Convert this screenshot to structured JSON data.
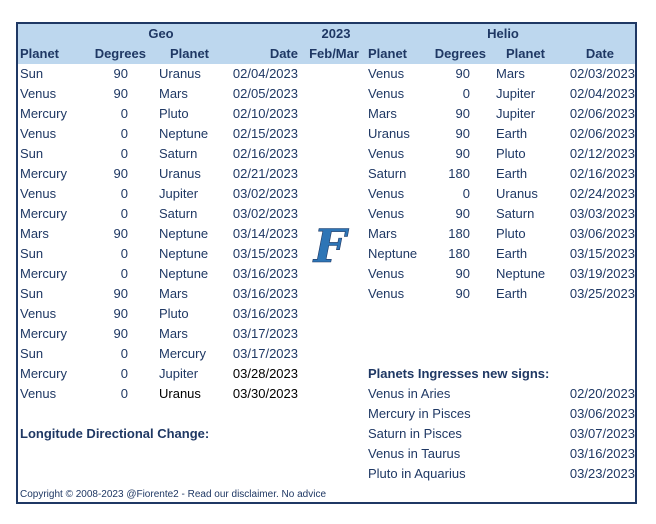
{
  "header": {
    "geo_title": "Geo",
    "year": "2023",
    "period": "Feb/Mar",
    "helio_title": "Helio",
    "geo_cols": [
      "Planet",
      "Degrees",
      "Planet",
      "Date"
    ],
    "helio_cols": [
      "Planet",
      "Degrees",
      "Planet",
      "Date"
    ]
  },
  "geo_rows": [
    [
      "Sun",
      "90",
      "Uranus",
      "02/04/2023"
    ],
    [
      "Venus",
      "90",
      "Mars",
      "02/05/2023"
    ],
    [
      "Mercury",
      "0",
      "Pluto",
      "02/10/2023"
    ],
    [
      "Venus",
      "0",
      "Neptune",
      "02/15/2023"
    ],
    [
      "Sun",
      "0",
      "Saturn",
      "02/16/2023"
    ],
    [
      "Mercury",
      "90",
      "Uranus",
      "02/21/2023"
    ],
    [
      "Venus",
      "0",
      "Jupiter",
      "03/02/2023"
    ],
    [
      "Mercury",
      "0",
      "Saturn",
      "03/02/2023"
    ],
    [
      "Mars",
      "90",
      "Neptune",
      "03/14/2023"
    ],
    [
      "Sun",
      "0",
      "Neptune",
      "03/15/2023"
    ],
    [
      "Mercury",
      "0",
      "Neptune",
      "03/16/2023"
    ],
    [
      "Sun",
      "90",
      "Mars",
      "03/16/2023"
    ],
    [
      "Venus",
      "90",
      "Pluto",
      "03/16/2023"
    ],
    [
      "Mercury",
      "90",
      "Mars",
      "03/17/2023"
    ],
    [
      "Sun",
      "0",
      "Mercury",
      "03/17/2023"
    ],
    [
      "Mercury",
      "0",
      "Jupiter",
      "03/28/2023"
    ],
    [
      "Venus",
      "0",
      "Uranus",
      "03/30/2023"
    ]
  ],
  "helio_rows": [
    [
      "Venus",
      "90",
      "Mars",
      "02/03/2023"
    ],
    [
      "Venus",
      "0",
      "Jupiter",
      "02/04/2023"
    ],
    [
      "Mars",
      "90",
      "Jupiter",
      "02/06/2023"
    ],
    [
      "Uranus",
      "90",
      "Earth",
      "02/06/2023"
    ],
    [
      "Venus",
      "90",
      "Pluto",
      "02/12/2023"
    ],
    [
      "Saturn",
      "180",
      "Earth",
      "02/16/2023"
    ],
    [
      "Venus",
      "0",
      "Uranus",
      "02/24/2023"
    ],
    [
      "Venus",
      "90",
      "Saturn",
      "03/03/2023"
    ],
    [
      "Mars",
      "180",
      "Pluto",
      "03/06/2023"
    ],
    [
      "Neptune",
      "180",
      "Earth",
      "03/15/2023"
    ],
    [
      "Venus",
      "90",
      "Neptune",
      "03/19/2023"
    ],
    [
      "Venus",
      "90",
      "Earth",
      "03/25/2023"
    ]
  ],
  "longitude_title": "Longitude Directional Change:",
  "ingress": {
    "title": "Planets Ingresses new signs:",
    "rows": [
      [
        "Venus in Aries",
        "02/20/2023"
      ],
      [
        "Mercury in Pisces",
        "03/06/2023"
      ],
      [
        "Saturn in Pisces",
        "03/07/2023"
      ],
      [
        "Venus in Taurus",
        "03/16/2023"
      ],
      [
        "Pluto in Aquarius",
        "03/23/2023"
      ]
    ]
  },
  "logo_letter": "F",
  "copyright": "Copyright © 2008-2023 @Fiorente2 - Read our disclaimer. No advice",
  "colors": {
    "header_bg": "#bdd7ee",
    "text": "#1f3864",
    "border": "#1f3864"
  }
}
